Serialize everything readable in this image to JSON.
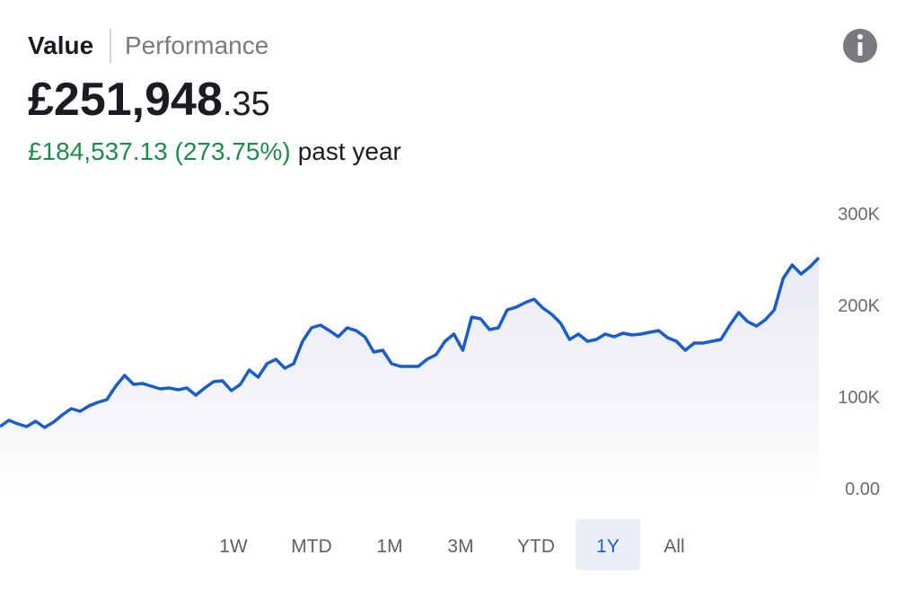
{
  "header": {
    "tabs": [
      "Value",
      "Performance"
    ]
  },
  "balance": {
    "main": "£251,948",
    "fraction": ".35"
  },
  "change": {
    "amount": "£184,537.13 (273.75%)",
    "period": "past year"
  },
  "chart_data": {
    "type": "line",
    "series": [
      {
        "color": "#1a5cc8",
        "values": [
          67600,
          74500,
          70600,
          67600,
          73500,
          66700,
          72500,
          80400,
          87300,
          84300,
          90200,
          94100,
          97100,
          111800,
          123500,
          113700,
          114700,
          111800,
          108800,
          109800,
          107800,
          109800,
          101900,
          109800,
          116700,
          117600,
          106900,
          113700,
          129400,
          121600,
          136300,
          141200,
          131400,
          136300,
          160800,
          175500,
          178400,
          172500,
          165700,
          175500,
          172500,
          165700,
          149000,
          151000,
          136300,
          133300,
          133300,
          133300,
          141200,
          146100,
          160800,
          168600,
          151000,
          187300,
          185300,
          173500,
          175500,
          195100,
          198000,
          202900,
          206800,
          197100,
          190200,
          180400,
          162700,
          168600,
          160800,
          162700,
          168600,
          165700,
          169600,
          167600,
          168600,
          170600,
          172500,
          164700,
          160800,
          151000,
          158800,
          158800,
          160800,
          162700,
          178400,
          192200,
          182300,
          177400,
          184300,
          195100,
          229400,
          244000,
          234200,
          242100,
          251948
        ]
      }
    ],
    "ylim": [
      0,
      300000
    ],
    "yticks": [
      {
        "value": 300000,
        "label": "300K"
      },
      {
        "value": 200000,
        "label": "200K"
      },
      {
        "value": 100000,
        "label": "100K"
      },
      {
        "value": 0,
        "label": "0.00"
      }
    ]
  },
  "ranges": [
    "1W",
    "MTD",
    "1M",
    "3M",
    "YTD",
    "1Y",
    "All"
  ],
  "selected_range_index": 5
}
